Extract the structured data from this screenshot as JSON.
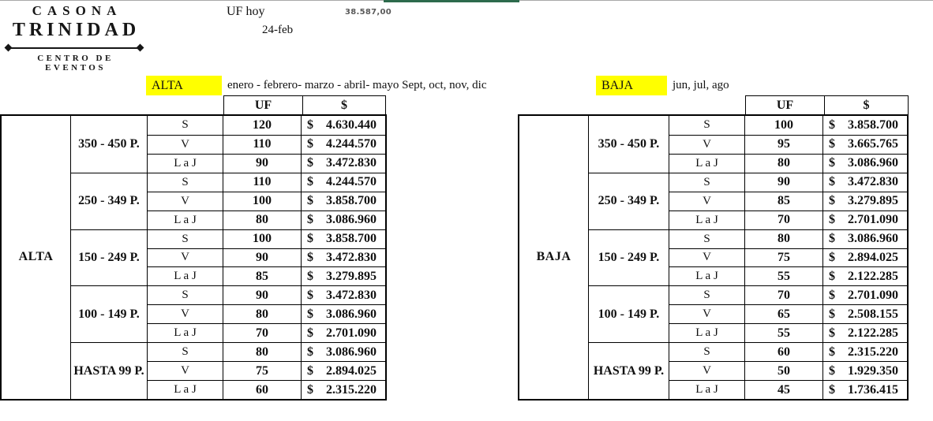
{
  "logo": {
    "line1": "CASONA",
    "line2": "TRINIDAD",
    "line3": "CENTRO DE EVENTOS"
  },
  "top": {
    "uf_label": "UF hoy",
    "uf_value": "38.587,00",
    "date": "24-feb"
  },
  "banners": {
    "alta": {
      "label": "ALTA",
      "months": "enero - febrero- marzo - abril- mayo Sept, oct, nov, dic"
    },
    "baja": {
      "label": "BAJA",
      "months": "jun, jul, ago"
    }
  },
  "price_symbol": "$",
  "colors": {
    "highlight_yellow": "#ffff00",
    "top_bar_green": "#2d6a4c",
    "top_line_gray": "#a8a8a8",
    "uf_value_gray": "#595959"
  },
  "tables": [
    {
      "season": "ALTA",
      "header_uf": "UF",
      "header_price": "$",
      "groups": [
        {
          "capacity": "350 - 450 P.",
          "rows": [
            {
              "day": "S",
              "uf": "120",
              "price": "4.630.440"
            },
            {
              "day": "V",
              "uf": "110",
              "price": "4.244.570"
            },
            {
              "day": "L a J",
              "uf": "90",
              "price": "3.472.830"
            }
          ]
        },
        {
          "capacity": "250 - 349 P.",
          "rows": [
            {
              "day": "S",
              "uf": "110",
              "price": "4.244.570"
            },
            {
              "day": "V",
              "uf": "100",
              "price": "3.858.700"
            },
            {
              "day": "L a J",
              "uf": "80",
              "price": "3.086.960"
            }
          ]
        },
        {
          "capacity": "150 - 249 P.",
          "rows": [
            {
              "day": "S",
              "uf": "100",
              "price": "3.858.700"
            },
            {
              "day": "V",
              "uf": "90",
              "price": "3.472.830"
            },
            {
              "day": "L a J",
              "uf": "85",
              "price": "3.279.895"
            }
          ]
        },
        {
          "capacity": "100 - 149 P.",
          "rows": [
            {
              "day": "S",
              "uf": "90",
              "price": "3.472.830"
            },
            {
              "day": "V",
              "uf": "80",
              "price": "3.086.960"
            },
            {
              "day": "L a J",
              "uf": "70",
              "price": "2.701.090"
            }
          ]
        },
        {
          "capacity": "HASTA 99 P.",
          "rows": [
            {
              "day": "S",
              "uf": "80",
              "price": "3.086.960"
            },
            {
              "day": "V",
              "uf": "75",
              "price": "2.894.025"
            },
            {
              "day": "L a J",
              "uf": "60",
              "price": "2.315.220"
            }
          ]
        }
      ]
    },
    {
      "season": "BAJA",
      "header_uf": "UF",
      "header_price": "$",
      "groups": [
        {
          "capacity": "350 - 450 P.",
          "rows": [
            {
              "day": "S",
              "uf": "100",
              "price": "3.858.700"
            },
            {
              "day": "V",
              "uf": "95",
              "price": "3.665.765"
            },
            {
              "day": "L a J",
              "uf": "80",
              "price": "3.086.960"
            }
          ]
        },
        {
          "capacity": "250 - 349 P.",
          "rows": [
            {
              "day": "S",
              "uf": "90",
              "price": "3.472.830"
            },
            {
              "day": "V",
              "uf": "85",
              "price": "3.279.895"
            },
            {
              "day": "L a J",
              "uf": "70",
              "price": "2.701.090"
            }
          ]
        },
        {
          "capacity": "150 - 249 P.",
          "rows": [
            {
              "day": "S",
              "uf": "80",
              "price": "3.086.960"
            },
            {
              "day": "V",
              "uf": "75",
              "price": "2.894.025"
            },
            {
              "day": "L a J",
              "uf": "55",
              "price": "2.122.285"
            }
          ]
        },
        {
          "capacity": "100 - 149 P.",
          "rows": [
            {
              "day": "S",
              "uf": "70",
              "price": "2.701.090"
            },
            {
              "day": "V",
              "uf": "65",
              "price": "2.508.155"
            },
            {
              "day": "L a J",
              "uf": "55",
              "price": "2.122.285"
            }
          ]
        },
        {
          "capacity": "HASTA 99 P.",
          "rows": [
            {
              "day": "S",
              "uf": "60",
              "price": "2.315.220"
            },
            {
              "day": "V",
              "uf": "50",
              "price": "1.929.350"
            },
            {
              "day": "L a J",
              "uf": "45",
              "price": "1.736.415"
            }
          ]
        }
      ]
    }
  ]
}
